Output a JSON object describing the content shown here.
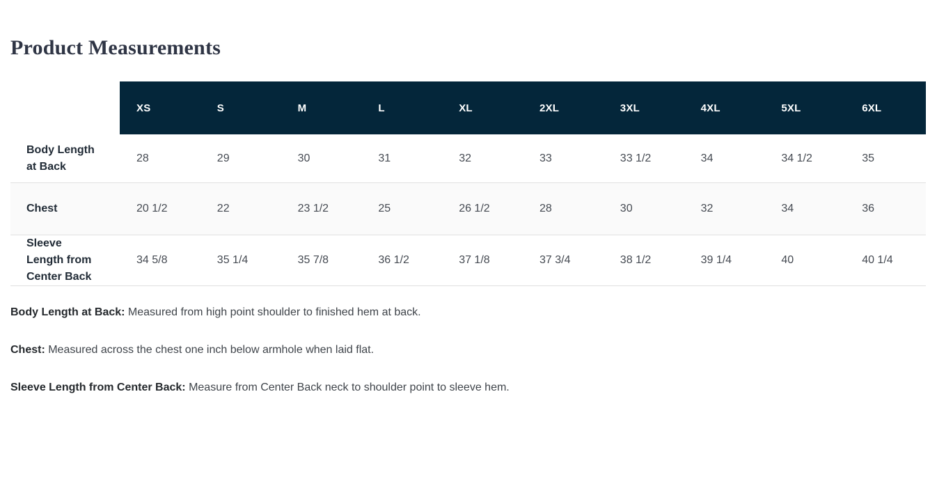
{
  "page": {
    "title": "Product Measurements"
  },
  "table": {
    "sizes": [
      "XS",
      "S",
      "M",
      "L",
      "XL",
      "2XL",
      "3XL",
      "4XL",
      "5XL",
      "6XL"
    ],
    "rows": [
      {
        "label": "Body Length at Back",
        "values": [
          "28",
          "29",
          "30",
          "31",
          "32",
          "33",
          "33 1/2",
          "34",
          "34 1/2",
          "35"
        ]
      },
      {
        "label": "Chest",
        "values": [
          "20 1/2",
          "22",
          "23 1/2",
          "25",
          "26 1/2",
          "28",
          "30",
          "32",
          "34",
          "36"
        ]
      },
      {
        "label": "Sleeve Length from Center Back",
        "values": [
          "34 5/8",
          "35 1/4",
          "35 7/8",
          "36 1/2",
          "37 1/8",
          "37 3/4",
          "38 1/2",
          "39 1/4",
          "40",
          "40 1/4"
        ]
      }
    ]
  },
  "definitions": [
    {
      "term": "Body Length at Back:",
      "text": " Measured from high point shoulder to finished hem at back."
    },
    {
      "term": "Chest:",
      "text": " Measured across the chest one inch below armhole when laid flat."
    },
    {
      "term": "Sleeve Length from Center Back:",
      "text": " Measure from Center Back neck to shoulder point to sleeve hem."
    }
  ],
  "colors": {
    "header_bg": "#04263a",
    "header_text": "#ffffff",
    "alt_row_bg": "#fafafa",
    "divider": "#e0e0e0",
    "title": "#2f3545"
  }
}
